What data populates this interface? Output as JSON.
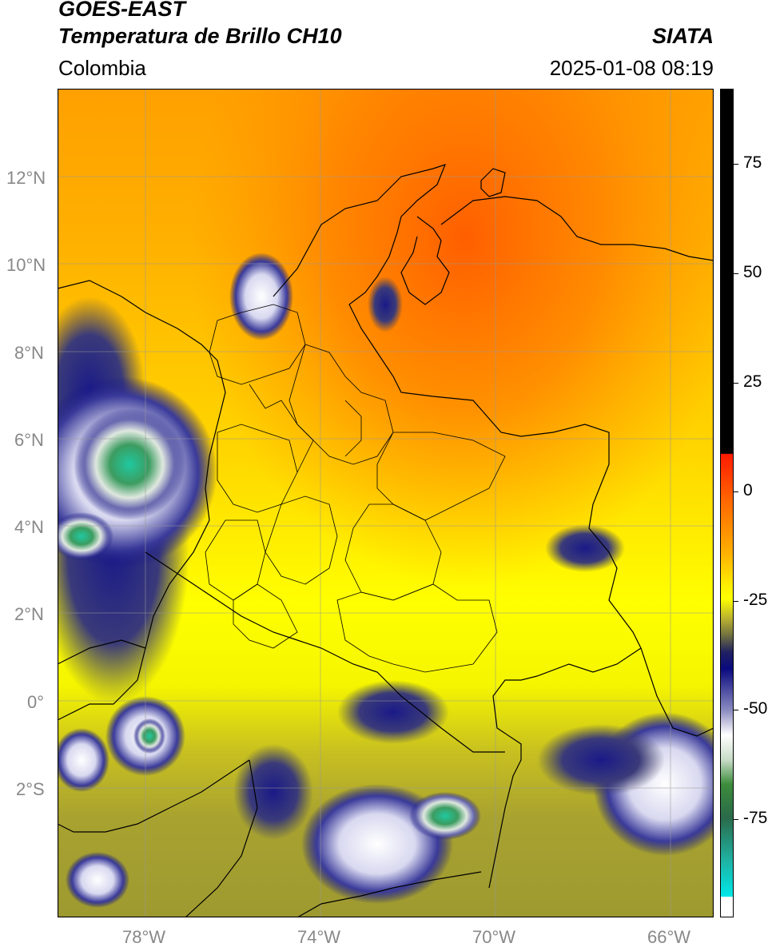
{
  "header": {
    "satellite": "GOES-EAST",
    "product": "Temperatura de Brillo CH10",
    "region": "Colombia",
    "agency": "SIATA",
    "timestamp": "2025-01-08 08:19"
  },
  "map": {
    "lat_labels": [
      "12°N",
      "10°N",
      "8°N",
      "6°N",
      "4°N",
      "2°N",
      "0°",
      "2°S"
    ],
    "lon_labels": [
      "78°W",
      "74°W",
      "70°W",
      "66°W"
    ],
    "extent": {
      "lon_min": -79.6,
      "lon_max": -64.6,
      "lat_min": -5.0,
      "lat_max": 14.0
    }
  },
  "colorbar": {
    "ticks": [
      "75",
      "50",
      "25",
      "0",
      "-25",
      "-50",
      "-75"
    ],
    "range": [
      -95,
      90
    ],
    "colors": {
      "warm_black": "#000000",
      "red": "#ff2a00",
      "orange": "#ff8c00",
      "yellow": "#ffff00",
      "olive": "#a6a032",
      "navy": "#0a0a78",
      "white": "#ffffff",
      "green": "#3c8c3c",
      "cyan": "#00e0e0"
    }
  }
}
